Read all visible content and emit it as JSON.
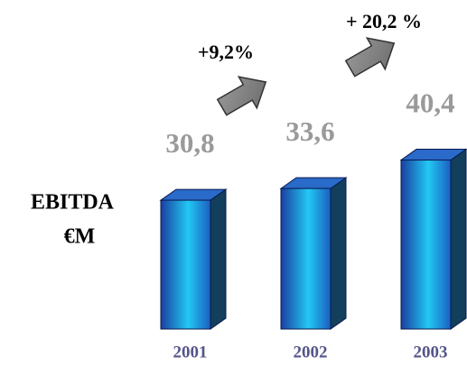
{
  "chart_data": {
    "type": "bar3d",
    "ylabel": [
      "EBITDA",
      "€M"
    ],
    "categories": [
      "2001",
      "2002",
      "2003"
    ],
    "values": [
      30.8,
      33.6,
      40.4
    ],
    "value_labels": [
      "30,8",
      "33,6",
      "40,4"
    ],
    "annotations": [
      "+9,2%",
      "+ 20,2 %"
    ],
    "color": "#1ab8e8"
  }
}
